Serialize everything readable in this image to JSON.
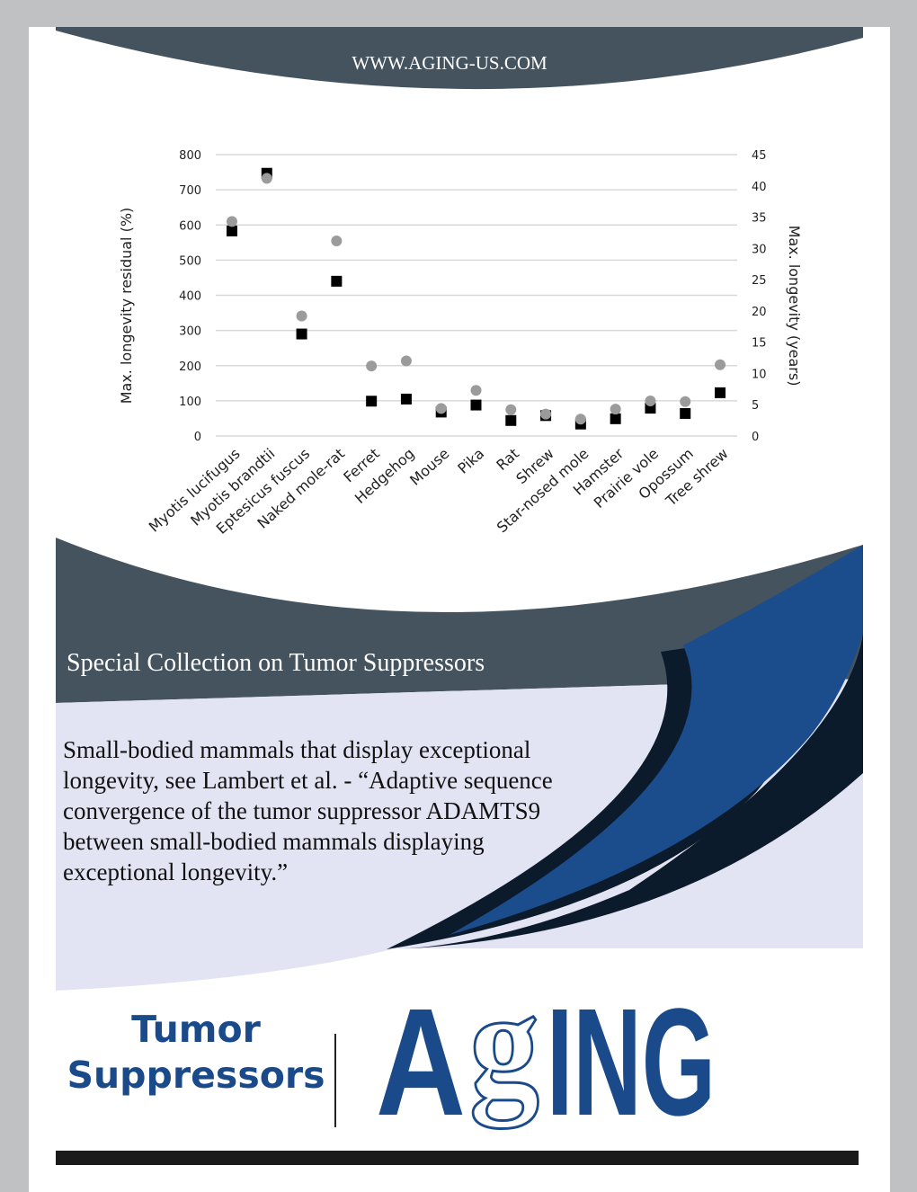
{
  "header": {
    "site": "WWW.AGING-US.COM"
  },
  "banner": {
    "collection_title": "Special Collection on Tumor Suppressors"
  },
  "description": "Small-bodied mammals that display exceptional longevity, see Lambert et al. - “Adaptive sequence convergence of the tumor suppressor ADAMTS9 between small-bodied mammals displaying exceptional longevity.”",
  "footer": {
    "topic_line1": "Tumor",
    "topic_line2": "Suppressors",
    "journal_logo": "AGING"
  },
  "colors": {
    "slate": "#45535e",
    "navy": "#0c1b2c",
    "blue": "#1b4c8c",
    "lavender": "#e2e4f3",
    "brand_text": "#1a4a8a",
    "circle": "#9b9b9b",
    "square": "#000000"
  },
  "chart_data": {
    "type": "scatter",
    "categories": [
      "Myotis lucifugus",
      "Myotis brandtii",
      "Eptesicus fuscus",
      "Naked mole-rat",
      "Ferret",
      "Hedgehog",
      "Mouse",
      "Pika",
      "Rat",
      "Shrew",
      "Star-nosed mole",
      "Hamster",
      "Prairie vole",
      "Opossum",
      "Tree shrew"
    ],
    "ylabel_left": "Max. longevity residual (%)",
    "ylabel_right": "Max. longevity (years)",
    "ylim_left": [
      0,
      800
    ],
    "yticks_left": [
      0,
      100,
      200,
      300,
      400,
      500,
      600,
      700,
      800
    ],
    "ylim_right": [
      0,
      45
    ],
    "yticks_right": [
      0,
      5,
      10,
      15,
      20,
      25,
      30,
      35,
      40,
      45
    ],
    "grid": true,
    "series": [
      {
        "marker": "square",
        "axis": "left",
        "color": "#000000",
        "values": [
          583,
          747,
          290,
          440,
          99,
          105,
          68,
          88,
          44,
          58,
          34,
          49,
          79,
          64,
          123
        ]
      },
      {
        "marker": "circle",
        "axis": "right",
        "color": "#9b9b9b",
        "values": [
          34.3,
          41.2,
          19.2,
          31.2,
          11.2,
          12.0,
          4.4,
          7.3,
          4.2,
          3.5,
          2.7,
          4.3,
          5.6,
          5.5,
          11.4
        ]
      }
    ]
  }
}
